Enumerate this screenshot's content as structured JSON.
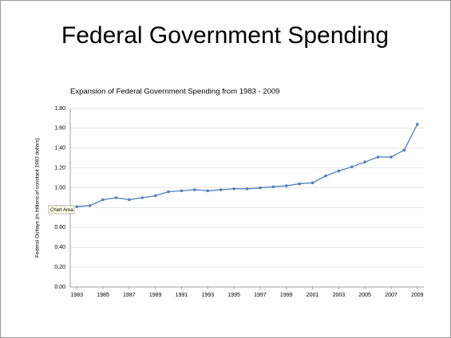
{
  "chart_data": {
    "type": "line",
    "slide_title": "Federal Government Spending",
    "title": "Expansion of Federal Government Spending from 1983 - 2009",
    "y_label": "Federal Outlays (in trillions of constant 1983 dollars)",
    "annotation": "Chart Area",
    "x": [
      1983,
      1984,
      1985,
      1986,
      1987,
      1988,
      1989,
      1990,
      1991,
      1992,
      1993,
      1994,
      1995,
      1996,
      1997,
      1998,
      1999,
      2000,
      2001,
      2002,
      2003,
      2004,
      2005,
      2006,
      2007,
      2008,
      2009
    ],
    "series": [
      {
        "color": "#4f81bd",
        "values": [
          0.81,
          0.82,
          0.88,
          0.9,
          0.88,
          0.9,
          0.92,
          0.96,
          0.97,
          0.98,
          0.97,
          0.98,
          0.99,
          0.99,
          1.0,
          1.01,
          1.02,
          1.04,
          1.05,
          1.12,
          1.17,
          1.21,
          1.26,
          1.31,
          1.31,
          1.38,
          1.64
        ]
      }
    ],
    "xlim": [
      1982.5,
      2009.5
    ],
    "xticks": [
      1983,
      1985,
      1987,
      1989,
      1991,
      1993,
      1995,
      1997,
      1999,
      2001,
      2003,
      2005,
      2007,
      2009
    ],
    "ylim": [
      0,
      1.8
    ],
    "yticks": [
      {
        "value": 0,
        "label": "0.00"
      },
      {
        "value": 0.2,
        "label": "0.20"
      },
      {
        "value": 0.4,
        "label": "0.40"
      },
      {
        "value": 0.6,
        "label": "0.60"
      },
      {
        "value": 0.8,
        "label": "0.80"
      },
      {
        "value": 1.0,
        "label": "1.00"
      },
      {
        "value": 1.2,
        "label": "1.20"
      },
      {
        "value": 1.4,
        "label": "1.40"
      },
      {
        "value": 1.6,
        "label": "1.60"
      },
      {
        "value": 1.8,
        "label": "1.80"
      }
    ],
    "grid": true
  }
}
